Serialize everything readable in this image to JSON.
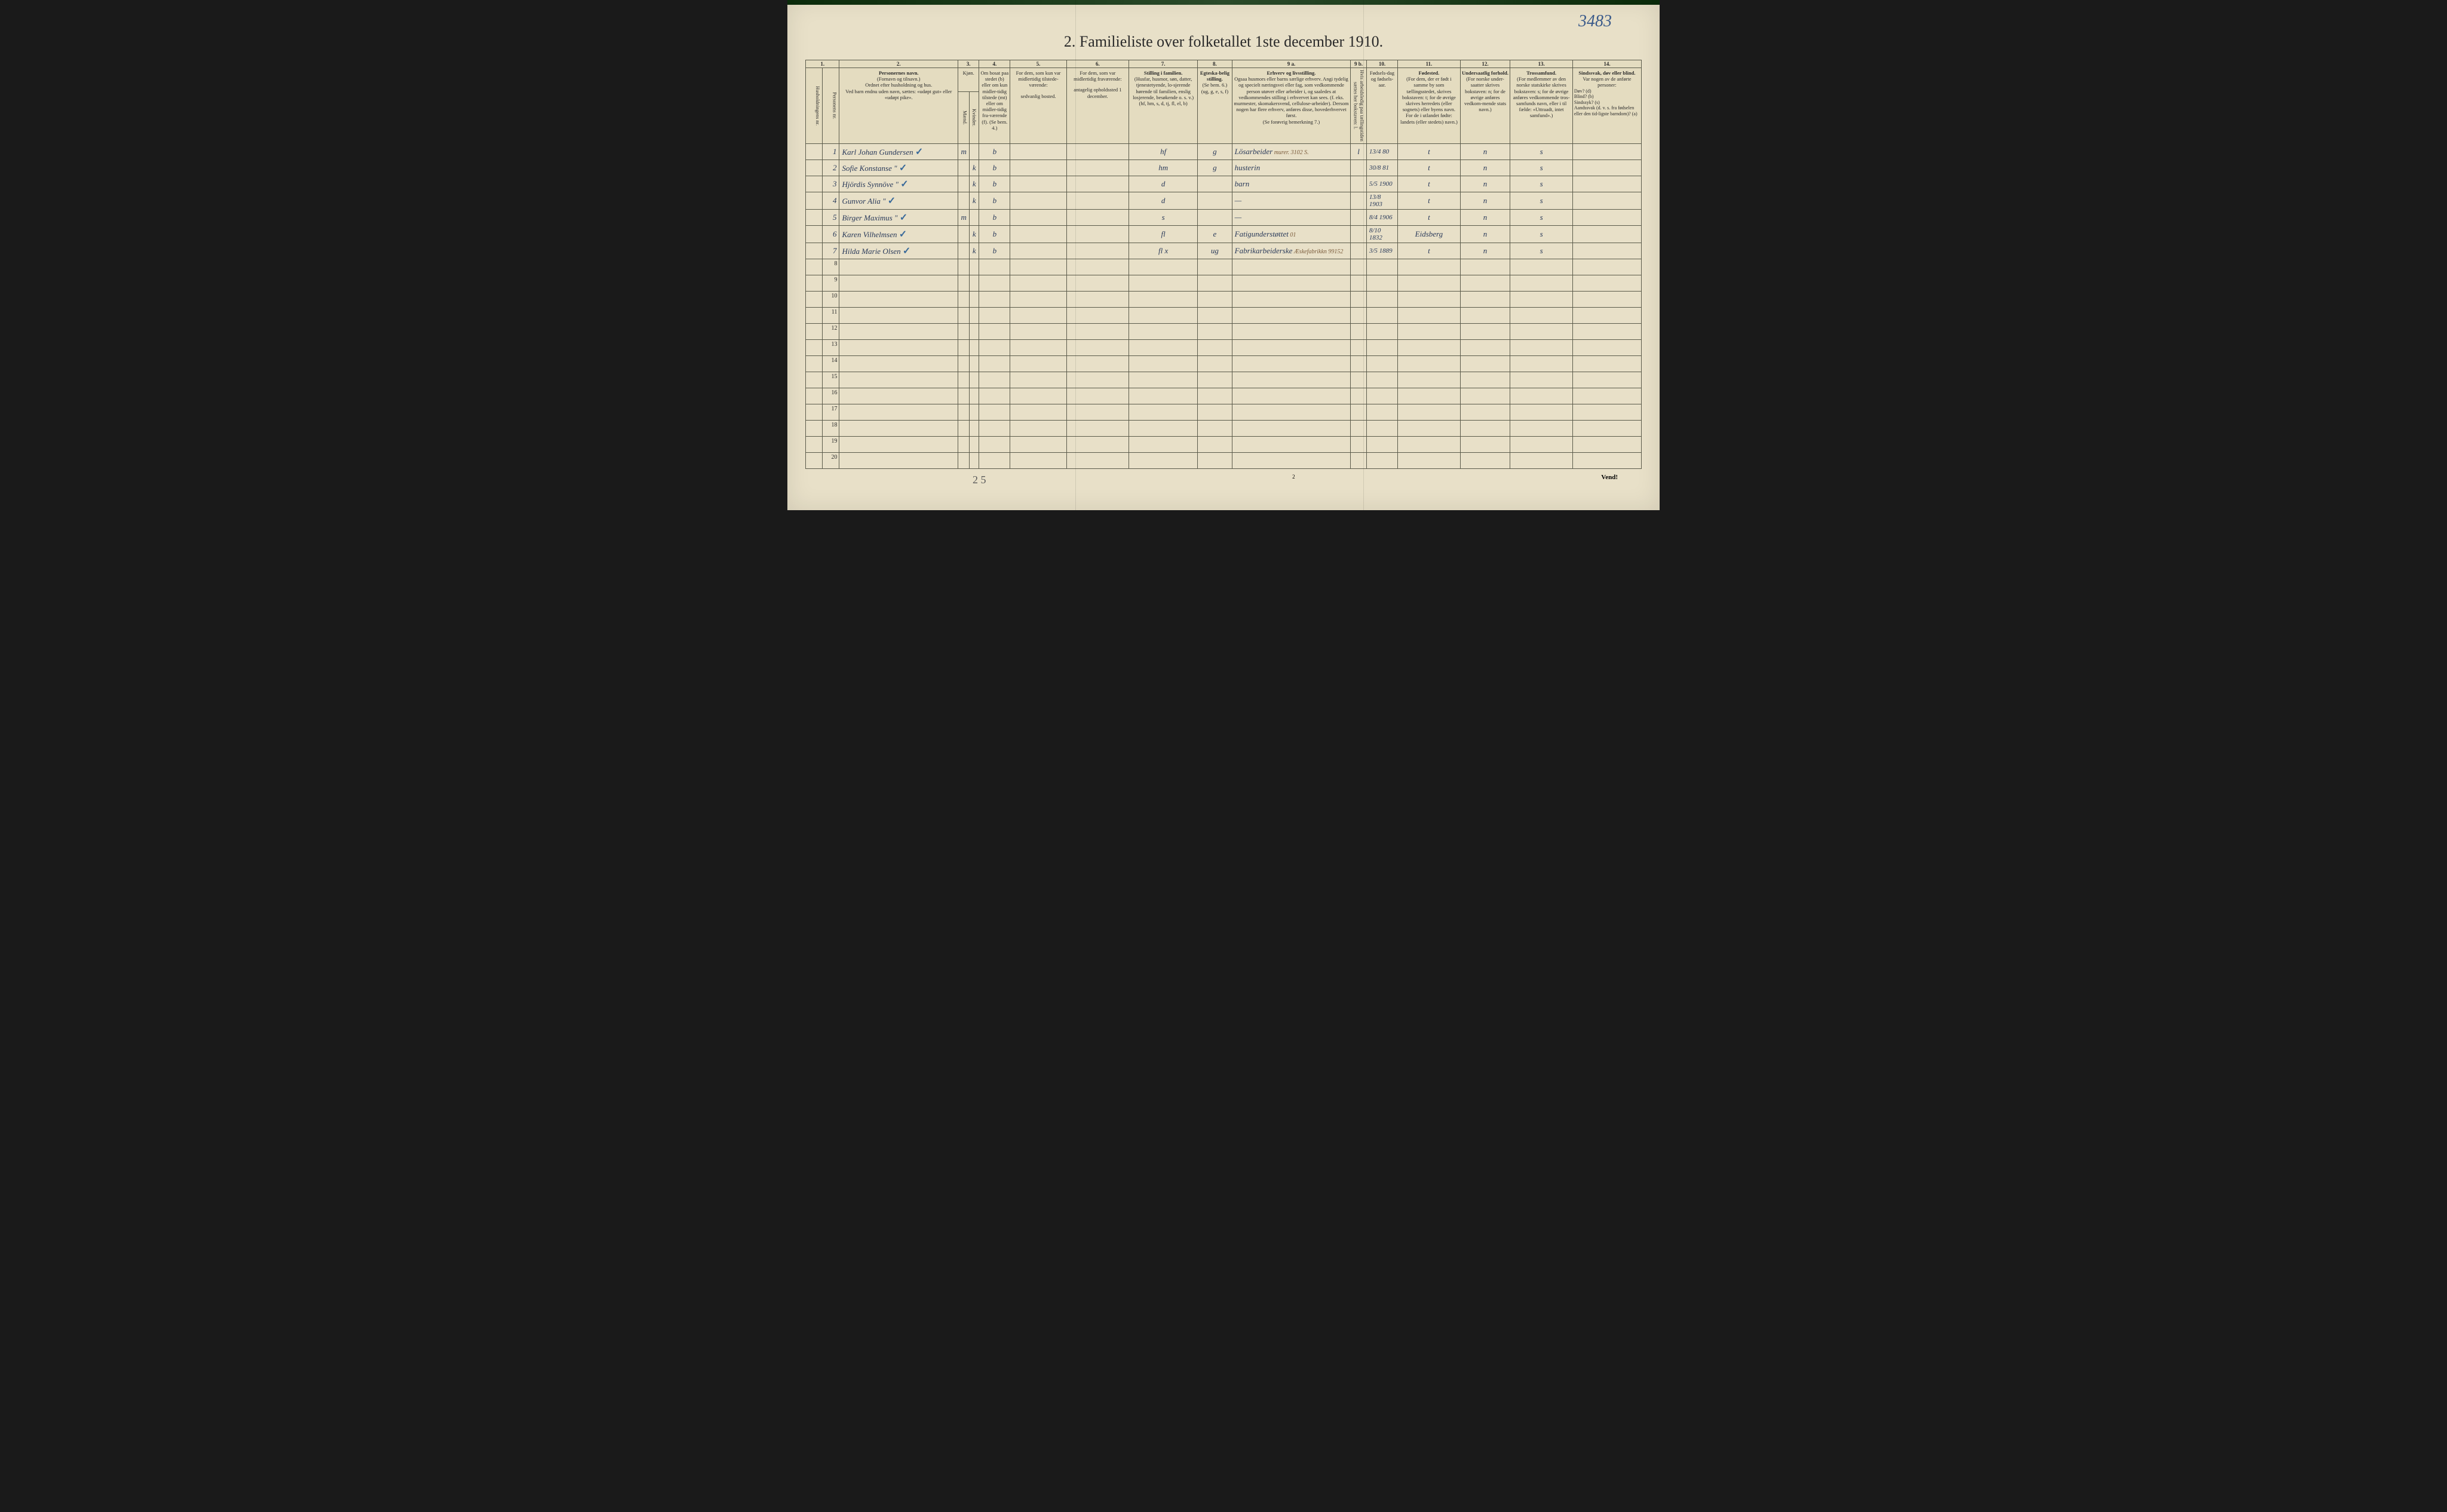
{
  "annotation_topright": "3483",
  "title": "2.  Familieliste over folketallet 1ste december 1910.",
  "column_numbers": [
    "1.",
    "2.",
    "3.",
    "4.",
    "5.",
    "6.",
    "7.",
    "8.",
    "9 a.",
    "9 b.",
    "10.",
    "11.",
    "12.",
    "13.",
    "14."
  ],
  "headers": {
    "col1": "Husholdningens nr.",
    "col1b": "Personens nr.",
    "col2_title": "Personernes navn.",
    "col2_sub1": "(Fornavn og tilnavn.)",
    "col2_sub2": "Ordnet efter husholdning og hus.",
    "col2_sub3": "Ved barn endnu uden navn, sættes: «udøpt gut» eller «udøpt pike».",
    "col3_title": "Kjøn.",
    "col3_m": "Mænd.",
    "col3_k": "Kvinder.",
    "col3_sub": "m.  k.",
    "col4_title": "Om bosat paa stedet (b) eller om kun midler-tidig tilstede (mt) eller om midler-tidig fra-værende (f). (Se bem. 4.)",
    "col5_title": "For dem, som kun var midlertidig tilstede-værende:",
    "col5_sub": "sedvanlig bosted.",
    "col6_title": "For dem, som var midlertidig fraværende:",
    "col6_sub": "antagelig opholdssted 1 december.",
    "col7_title": "Stilling i familien.",
    "col7_sub": "(Husfar, husmor, søn, datter, tjenestetyende, lo-sjerende hørende til familien, enslig losjerende, besøkende o. s. v.)",
    "col7_sub2": "(hf, hm, s, d, tj, fl, el, b)",
    "col8_title": "Egteska-belig stilling.",
    "col8_sub": "(Se bem. 6.)",
    "col8_sub2": "(ug, g, e, s, f)",
    "col9a_title": "Erhverv og livsstilling.",
    "col9a_sub": "Ogsaa husmors eller barns særlige erhverv. Angi tydelig og specielt næringsvei eller fag, som vedkommende person utøver eller arbeider i, og saaledes at vedkommendes stilling i erhvervet kan sees. (f. eks. murmester, skomakersvend, cellulose-arbeider). Dersom nogen har flere erhverv, anføres disse, hovederhvervet først.",
    "col9a_sub2": "(Se forøvrig bemerkning 7.)",
    "col9b": "Hvis arbeidsledig paa tællingstiden sættes her bokstaven: l.",
    "col10_title": "Fødsels-dag og fødsels-aar.",
    "col11_title": "Fødested.",
    "col11_sub": "(For dem, der er født i samme by som tællingsstedet, skrives bokstaven: t; for de øvrige skrives herredets (eller sognets) eller byens navn. For de i utlandet fødte: landets (eller stedets) navn.)",
    "col12_title": "Undersaatlig forhold.",
    "col12_sub": "(For norske under-saatter skrives bokstaven: n; for de øvrige anføres vedkom-mende stats navn.)",
    "col13_title": "Trossamfund.",
    "col13_sub": "(For medlemmer av den norske statskirke skrives bokstaven: s; for de øvrige anføres vedkommende tros-samfunds navn, eller i til fælde: «Uttraadt, intet samfund».)",
    "col14_title": "Sindssvak, døv eller blind.",
    "col14_sub": "Var nogen av de anførte personer:",
    "col14_sub2": "Døv?      (d)\nBlind?    (b)\nSindssyk? (s)\nAandssvak (d. v. s. fra fødselen eller den tid-ligste barndom)? (a)"
  },
  "rows": [
    {
      "num": "1",
      "name": "Karl Johan Gundersen",
      "check": "✓",
      "sex": "m",
      "bosat": "b",
      "stilling": "hf",
      "egt": "g",
      "erhverv": "Lösarbeider",
      "note": "murer. 3102 S.",
      "9b": "l",
      "dob": "13/4 80",
      "fsted": "t",
      "under": "n",
      "tros": "s"
    },
    {
      "num": "2",
      "name": "Sofie Konstanse  \"",
      "check": "✓",
      "sex": "k",
      "bosat": "b",
      "stilling": "hm",
      "egt": "g",
      "erhverv": "husterin",
      "note": "",
      "9b": "",
      "dob": "30/8 81",
      "fsted": "t",
      "under": "n",
      "tros": "s"
    },
    {
      "num": "3",
      "name": "Hjördis Synnöve  \"",
      "check": "✓",
      "sex": "k",
      "bosat": "b",
      "stilling": "d",
      "egt": "",
      "erhverv": "barn",
      "note": "",
      "9b": "",
      "dob": "5/5 1900",
      "fsted": "t",
      "under": "n",
      "tros": "s"
    },
    {
      "num": "4",
      "name": "Gunvor Alia  \"",
      "check": "✓",
      "sex": "k",
      "bosat": "b",
      "stilling": "d",
      "egt": "",
      "erhverv": "—",
      "note": "",
      "9b": "",
      "dob": "13/8 1903",
      "fsted": "t",
      "under": "n",
      "tros": "s"
    },
    {
      "num": "5",
      "name": "Birger Maximus  \"",
      "check": "✓",
      "sex": "m",
      "bosat": "b",
      "stilling": "s",
      "egt": "",
      "erhverv": "—",
      "note": "",
      "9b": "",
      "dob": "8/4 1906",
      "fsted": "t",
      "under": "n",
      "tros": "s"
    },
    {
      "num": "6",
      "name": "Karen Vilhelmsen",
      "check": "✓",
      "sex": "k",
      "bosat": "b",
      "stilling": "fl",
      "egt": "e",
      "erhverv": "Fatigunderstøttet",
      "note": "01",
      "9b": "",
      "dob": "8/10 1832",
      "fsted": "Eidsberg",
      "under": "n",
      "tros": "s"
    },
    {
      "num": "7",
      "name": "Hilda Marie Olsen",
      "check": "✓",
      "sex": "k",
      "bosat": "b",
      "stilling": "fl x",
      "egt": "ug",
      "erhverv": "Fabrikarbeiderske",
      "note": "Æskefabrikkn 99152",
      "9b": "",
      "dob": "3/5 1889",
      "fsted": "t",
      "under": "n",
      "tros": "s"
    }
  ],
  "empty_rows": [
    8,
    9,
    10,
    11,
    12,
    13,
    14,
    15,
    16,
    17,
    18,
    19,
    20
  ],
  "footer_left": "2 5",
  "footer_center": "2",
  "footer_right": "Vend!",
  "colors": {
    "paper": "#e8e0c8",
    "ink_print": "#2a2a2a",
    "ink_handwritten": "#2a3a5a",
    "ink_blue": "#3a5a8a",
    "border": "#5a5a4a",
    "background": "#1a1a1a"
  },
  "col_widths": {
    "c1a": 16,
    "c1b": 16,
    "c2": 190,
    "c3a": 14,
    "c3b": 14,
    "c4": 50,
    "c5": 90,
    "c6": 100,
    "c7": 110,
    "c8": 55,
    "c9a": 190,
    "c9b": 18,
    "c10": 50,
    "c11": 100,
    "c12": 80,
    "c13": 100,
    "c14": 110
  }
}
